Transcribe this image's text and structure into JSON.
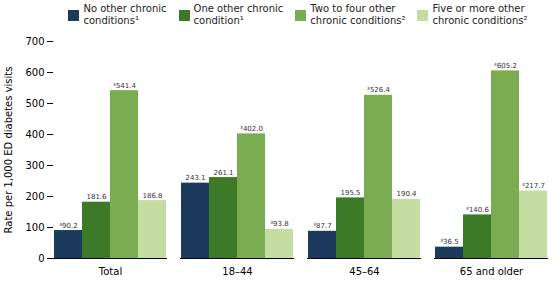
{
  "chart_data": {
    "type": "bar",
    "categories": [
      "Total",
      "18–44",
      "45–64",
      "65 and older"
    ],
    "series": [
      {
        "name": "No other chronic\nconditions¹",
        "color": "#1b3a5c",
        "values": [
          90.2,
          243.1,
          87.7,
          36.5
        ],
        "value_labels": [
          "³90.2",
          "243.1",
          "³87.7",
          "³36.5"
        ]
      },
      {
        "name": "One other chronic\ncondition¹",
        "color": "#3d7a28",
        "values": [
          181.6,
          261.1,
          195.5,
          140.6
        ],
        "value_labels": [
          "181.6",
          "261.1",
          "195.5",
          "³140.6"
        ]
      },
      {
        "name": "Two to four other\nchronic conditions²",
        "color": "#7aad52",
        "values": [
          541.4,
          402.0,
          526.4,
          605.2
        ],
        "value_labels": [
          "³541.4",
          "³402.0",
          "³526.4",
          "³605.2"
        ]
      },
      {
        "name": "Five or more other\nchronic conditions²",
        "color": "#c5dda0",
        "values": [
          186.8,
          93.8,
          190.4,
          217.7
        ],
        "value_labels": [
          "186.8",
          "³93.8",
          "190.4",
          "³217.7"
        ]
      }
    ],
    "ylabel": "Rate per 1,000 ED diabetes visits",
    "ylim": [
      0,
      700
    ],
    "yticks": [
      0,
      100,
      200,
      300,
      400,
      500,
      600,
      700
    ],
    "data_labels": true,
    "grid": false,
    "legend": "top"
  }
}
